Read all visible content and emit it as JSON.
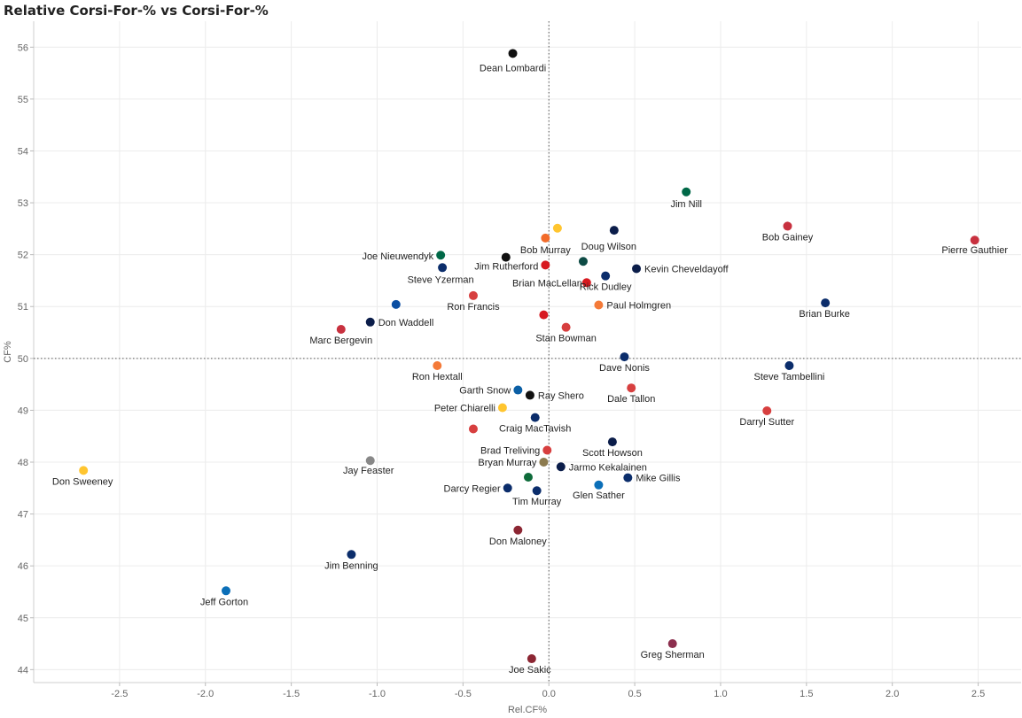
{
  "title": "Relative Corsi-For-% vs Corsi-For-%",
  "chart_data": {
    "type": "scatter",
    "title": "Relative Corsi-For-% vs Corsi-For-%",
    "xlabel": "Rel.CF%",
    "ylabel": "CF%",
    "xlim": [
      -3.0,
      2.75
    ],
    "ylim": [
      43.75,
      56.5
    ],
    "x_ticks": [
      "-2.5",
      "-2.0",
      "-1.5",
      "-1.0",
      "-0.5",
      "0.0",
      "0.5",
      "1.0",
      "1.5",
      "2.0",
      "2.5"
    ],
    "y_ticks": [
      "44",
      "45",
      "46",
      "47",
      "48",
      "49",
      "50",
      "51",
      "52",
      "53",
      "54",
      "55",
      "56"
    ],
    "reference_lines": {
      "x": 0.0,
      "y": 50.0
    },
    "grid": true,
    "points": [
      {
        "x": -0.21,
        "y": 55.88,
        "label": "Dean Lombardi",
        "color": "#111111"
      },
      {
        "x": 0.8,
        "y": 53.21,
        "label": "Jim Nill",
        "color": "#006847"
      },
      {
        "x": 1.39,
        "y": 52.55,
        "label": "Bob Gainey",
        "color": "#C8313F"
      },
      {
        "x": 2.48,
        "y": 52.28,
        "label": "Pierre Gauthier",
        "color": "#C8313F"
      },
      {
        "x": 0.05,
        "y": 52.51,
        "label": "",
        "color": "#FFC52F"
      },
      {
        "x": -0.02,
        "y": 52.32,
        "label": "Bob Murray",
        "color": "#F26B2A"
      },
      {
        "x": 0.38,
        "y": 52.47,
        "label": "Doug Wilson",
        "color": "#0B1D4A"
      },
      {
        "x": -0.63,
        "y": 51.99,
        "label": "Joe Nieuwendyk",
        "color": "#006847"
      },
      {
        "x": -0.25,
        "y": 51.95,
        "label": "",
        "color": "#111111"
      },
      {
        "x": 0.2,
        "y": 51.87,
        "label": "",
        "color": "#0E4B45"
      },
      {
        "x": -0.62,
        "y": 51.75,
        "label": "Steve Yzerman",
        "color": "#0B2D6B"
      },
      {
        "x": -0.02,
        "y": 51.8,
        "label": "Jim Rutherford",
        "color": "#D71920"
      },
      {
        "x": 0.51,
        "y": 51.73,
        "label": "Kevin Cheveldayoff",
        "color": "#0B1D4A"
      },
      {
        "x": 0.33,
        "y": 51.59,
        "label": "Rick Dudley",
        "color": "#0B2D6B"
      },
      {
        "x": 0.22,
        "y": 51.46,
        "label": "Brian MacLellan",
        "color": "#D71920"
      },
      {
        "x": -0.44,
        "y": 51.21,
        "label": "Ron Francis",
        "color": "#D73F3F"
      },
      {
        "x": 0.29,
        "y": 51.03,
        "label": "Paul Holmgren",
        "color": "#F47A38"
      },
      {
        "x": 1.61,
        "y": 51.07,
        "label": "Brian Burke",
        "color": "#0B2D6B"
      },
      {
        "x": -0.89,
        "y": 51.04,
        "label": "",
        "color": "#0B4EA2"
      },
      {
        "x": -1.04,
        "y": 50.7,
        "label": "Don Waddell",
        "color": "#0B1D4A"
      },
      {
        "x": -0.03,
        "y": 50.84,
        "label": "",
        "color": "#D71920"
      },
      {
        "x": 0.1,
        "y": 50.6,
        "label": "Stan Bowman",
        "color": "#D73F3F"
      },
      {
        "x": -1.21,
        "y": 50.56,
        "label": "Marc Bergevin",
        "color": "#C8313F"
      },
      {
        "x": 0.44,
        "y": 50.03,
        "label": "Dave Nonis",
        "color": "#0B2D6B"
      },
      {
        "x": -0.65,
        "y": 49.86,
        "label": "Ron Hextall",
        "color": "#F47A38"
      },
      {
        "x": 1.4,
        "y": 49.86,
        "label": "Steve Tambellini",
        "color": "#0B2D6B"
      },
      {
        "x": -0.18,
        "y": 49.39,
        "label": "Garth Snow",
        "color": "#0B5FA5"
      },
      {
        "x": -0.11,
        "y": 49.29,
        "label": "Ray Shero",
        "color": "#111111"
      },
      {
        "x": 0.48,
        "y": 49.43,
        "label": "Dale Tallon",
        "color": "#D73F3F"
      },
      {
        "x": -0.27,
        "y": 49.05,
        "label": "Peter Chiarelli",
        "color": "#FFC52F"
      },
      {
        "x": 1.27,
        "y": 48.99,
        "label": "Darryl Sutter",
        "color": "#D73F3F"
      },
      {
        "x": -0.08,
        "y": 48.86,
        "label": "Craig MacTavish",
        "color": "#0B2D6B"
      },
      {
        "x": -0.44,
        "y": 48.64,
        "label": "",
        "color": "#D73F3F"
      },
      {
        "x": 0.37,
        "y": 48.39,
        "label": "Scott Howson",
        "color": "#0B1D4A"
      },
      {
        "x": -0.01,
        "y": 48.23,
        "label": "Brad Treliving",
        "color": "#D73F3F"
      },
      {
        "x": -0.03,
        "y": 48.0,
        "label": "Bryan Murray",
        "color": "#8C7A4E"
      },
      {
        "x": 0.07,
        "y": 47.91,
        "label": "Jarmo Kekalainen",
        "color": "#0B1D4A"
      },
      {
        "x": -1.04,
        "y": 48.03,
        "label": "Jay Feaster",
        "color": "#888888"
      },
      {
        "x": -2.71,
        "y": 47.84,
        "label": "Don Sweeney",
        "color": "#FFC52F"
      },
      {
        "x": -0.12,
        "y": 47.71,
        "label": "",
        "color": "#0E6B3A"
      },
      {
        "x": 0.46,
        "y": 47.7,
        "label": "Mike Gillis",
        "color": "#0B2D6B"
      },
      {
        "x": -0.24,
        "y": 47.5,
        "label": "Darcy Regier",
        "color": "#0B2D6B"
      },
      {
        "x": -0.07,
        "y": 47.45,
        "label": "Tim Murray",
        "color": "#0B2D6B"
      },
      {
        "x": 0.29,
        "y": 47.56,
        "label": "Glen Sather",
        "color": "#0B6FB8"
      },
      {
        "x": -0.18,
        "y": 46.69,
        "label": "Don Maloney",
        "color": "#8C2633"
      },
      {
        "x": -1.15,
        "y": 46.22,
        "label": "Jim Benning",
        "color": "#0B2D6B"
      },
      {
        "x": -1.88,
        "y": 45.52,
        "label": "Jeff Gorton",
        "color": "#0B6FB8"
      },
      {
        "x": 0.72,
        "y": 44.5,
        "label": "Greg Sherman",
        "color": "#8C2F4E"
      },
      {
        "x": -0.1,
        "y": 44.21,
        "label": "Joe Sakic",
        "color": "#8C2633"
      }
    ]
  }
}
